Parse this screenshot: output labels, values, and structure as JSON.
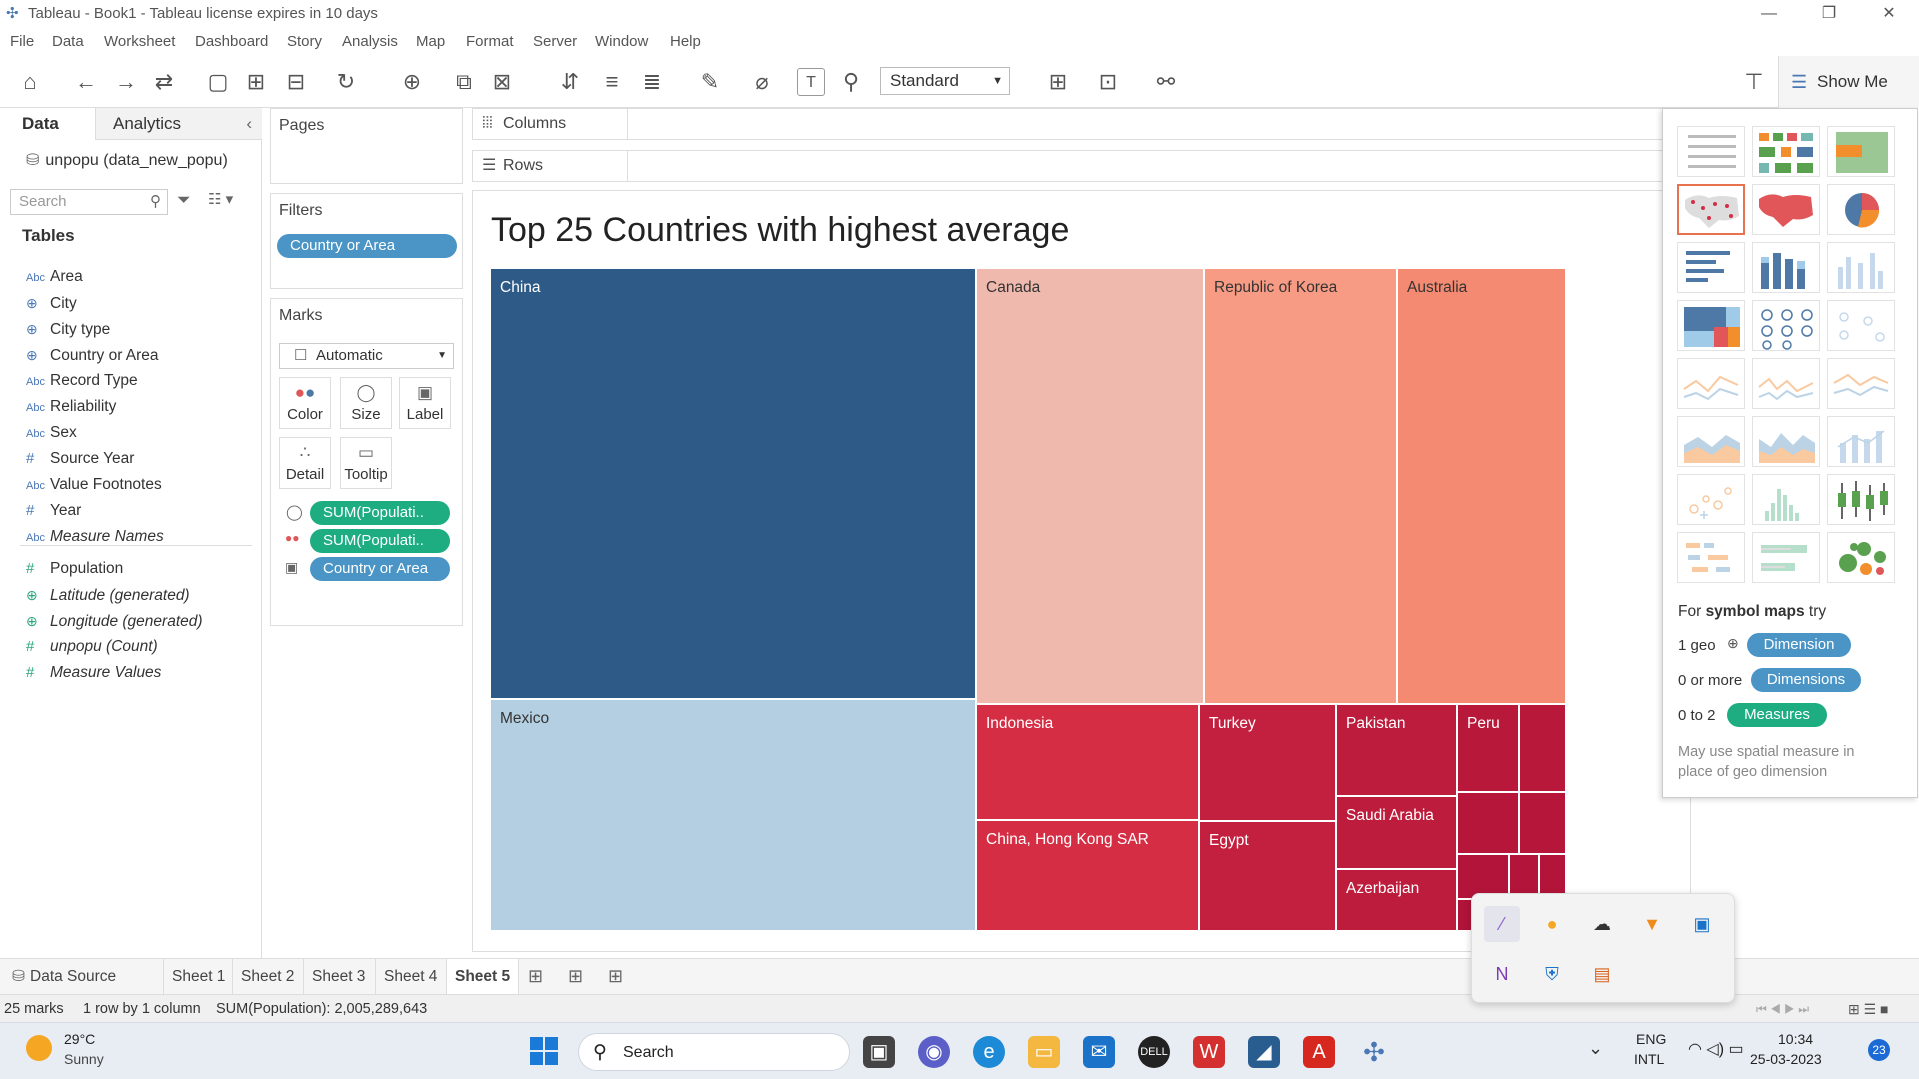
{
  "window": {
    "title": "Tableau - Book1 - Tableau license expires in 10 days"
  },
  "menu": [
    "File",
    "Data",
    "Worksheet",
    "Dashboard",
    "Story",
    "Analysis",
    "Map",
    "Format",
    "Server",
    "Window",
    "Help"
  ],
  "toolbar": {
    "fit_select": "Standard",
    "show_me_label": "Show Me"
  },
  "data_pane": {
    "tabs": [
      "Data",
      "Analytics"
    ],
    "datasource": "unpopu (data_new_popu)",
    "search_placeholder": "Search",
    "tables_header": "Tables",
    "fields": [
      {
        "icon": "Abc",
        "name": "Area"
      },
      {
        "icon": "globe",
        "name": "City"
      },
      {
        "icon": "globe",
        "name": "City type"
      },
      {
        "icon": "globe",
        "name": "Country or Area"
      },
      {
        "icon": "Abc",
        "name": "Record Type"
      },
      {
        "icon": "Abc",
        "name": "Reliability"
      },
      {
        "icon": "Abc",
        "name": "Sex"
      },
      {
        "icon": "#",
        "name": "Source Year"
      },
      {
        "icon": "Abc",
        "name": "Value Footnotes"
      },
      {
        "icon": "#",
        "name": "Year"
      },
      {
        "icon": "Abc",
        "name": "Measure Names",
        "italic": true
      },
      {
        "icon": "#",
        "name": "Population"
      },
      {
        "icon": "globe",
        "name": "Latitude (generated)",
        "italic": true
      },
      {
        "icon": "globe",
        "name": "Longitude (generated)",
        "italic": true
      },
      {
        "icon": "#",
        "name": "unpopu (Count)",
        "italic": true
      },
      {
        "icon": "#",
        "name": "Measure Values",
        "italic": true
      }
    ]
  },
  "pages": {
    "header": "Pages"
  },
  "filters": {
    "header": "Filters",
    "pill": "Country or Area"
  },
  "marks": {
    "header": "Marks",
    "type": "Automatic",
    "buttons": [
      "Color",
      "Size",
      "Label",
      "Detail",
      "Tooltip"
    ],
    "pills": [
      {
        "label": "SUM(Populati..",
        "kind": "green",
        "icon": "size"
      },
      {
        "label": "SUM(Populati..",
        "kind": "green",
        "icon": "color"
      },
      {
        "label": "Country or Area",
        "kind": "blue",
        "icon": "label"
      }
    ]
  },
  "shelves": {
    "columns": "Columns",
    "rows": "Rows"
  },
  "viz": {
    "title": "Top 25 Countries with highest average"
  },
  "treemap": [
    {
      "name": "China",
      "color": "#2d5a87"
    },
    {
      "name": "Mexico",
      "color": "#b5cfe2"
    },
    {
      "name": "Canada",
      "color": "#f0b9ad"
    },
    {
      "name": "Republic of Korea",
      "color": "#f79b84"
    },
    {
      "name": "Australia",
      "color": "#f58a72"
    },
    {
      "name": "Indonesia",
      "color": "#d52e44"
    },
    {
      "name": "China, Hong Kong SAR",
      "color": "#d52e44"
    },
    {
      "name": "Turkey",
      "color": "#c31f3e"
    },
    {
      "name": "Egypt",
      "color": "#c31f3e"
    },
    {
      "name": "Pakistan",
      "color": "#bd1c3c"
    },
    {
      "name": "Saudi Arabia",
      "color": "#bd1c3c"
    },
    {
      "name": "Azerbaijan",
      "color": "#bd1c3c"
    },
    {
      "name": "Peru",
      "color": "#b8183a"
    }
  ],
  "show_me": {
    "hint_prefix": "For ",
    "hint_bold": "symbol maps",
    "hint_suffix": " try",
    "rows": [
      {
        "label": "1 geo",
        "pill": "Dimension",
        "kind": "blue"
      },
      {
        "label": "0 or more",
        "pill": "Dimensions",
        "kind": "blue"
      },
      {
        "label": "0 to 2",
        "pill": "Measures",
        "kind": "green"
      }
    ],
    "note": "May use spatial measure in place of geo dimension"
  },
  "sheet_tabs": [
    "Data Source",
    "Sheet 1",
    "Sheet 2",
    "Sheet 3",
    "Sheet 4",
    "Sheet 5"
  ],
  "active_sheet": "Sheet 5",
  "status": {
    "marks": "25 marks",
    "dims": "1 row by 1 column",
    "sum": "SUM(Population): 2,005,289,643"
  },
  "taskbar": {
    "weather_temp": "29°C",
    "weather_desc": "Sunny",
    "search_label": "Search",
    "lang1": "ENG",
    "lang2": "INTL",
    "time": "10:34",
    "date": "25-03-2023",
    "notif_count": "23"
  }
}
